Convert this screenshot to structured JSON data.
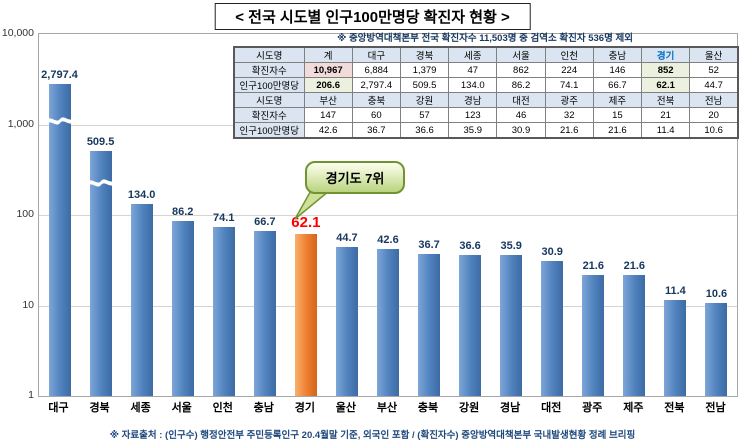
{
  "title": "< 전국 시도별 인구100만명당 확진자 현황 >",
  "chart_data": {
    "type": "bar",
    "title": "전국 시도별 인구100만명당 확진자 현황",
    "y_scale": "log",
    "ylim": [
      1,
      10000
    ],
    "y_ticks": [
      "10,000",
      "1,000",
      "100",
      "10",
      "1"
    ],
    "grid": "horizontal-major",
    "categories": [
      "대구",
      "경북",
      "세종",
      "서울",
      "인천",
      "충남",
      "경기",
      "울산",
      "부산",
      "충북",
      "강원",
      "경남",
      "대전",
      "광주",
      "제주",
      "전북",
      "전남"
    ],
    "values": [
      2797.4,
      509.5,
      134.0,
      86.2,
      74.1,
      66.7,
      62.1,
      44.7,
      42.6,
      36.7,
      36.6,
      35.9,
      30.9,
      21.6,
      21.6,
      11.4,
      10.6
    ],
    "value_labels": [
      "2,797.4",
      "509.5",
      "134.0",
      "86.2",
      "74.1",
      "66.7",
      "62.1",
      "44.7",
      "42.6",
      "36.7",
      "36.6",
      "35.9",
      "30.9",
      "21.6",
      "21.6",
      "11.4",
      "10.6"
    ],
    "highlight_index": 6,
    "highlight_category": "경기",
    "bar_color": "#4f81bd",
    "highlight_color": "#ed7d31",
    "highlight_value_color": "#ff0000",
    "value_label_color": "#17375e",
    "axis_break_indices": [
      0,
      1
    ]
  },
  "callout": {
    "label": "경기도 7위"
  },
  "table": {
    "note": "※ 중앙방역대책본부 전국 확진자수 11,503명 중 검역소 확진자 536명 제외",
    "row_headers": [
      "시도명",
      "확진자수",
      "인구100만명당"
    ],
    "total_region": "계",
    "highlight_region": "경기",
    "groups": [
      {
        "regions": [
          "계",
          "대구",
          "경북",
          "세종",
          "서울",
          "인천",
          "충남",
          "경기",
          "울산"
        ],
        "confirmed": [
          "10,967",
          "6,884",
          "1,379",
          "47",
          "862",
          "224",
          "146",
          "852",
          "52"
        ],
        "per_million": [
          "206.6",
          "2,797.4",
          "509.5",
          "134.0",
          "86.2",
          "74.1",
          "66.7",
          "62.1",
          "44.7"
        ]
      },
      {
        "regions": [
          "부산",
          "충북",
          "강원",
          "경남",
          "대전",
          "광주",
          "제주",
          "전북",
          "전남"
        ],
        "confirmed": [
          "147",
          "60",
          "57",
          "123",
          "46",
          "32",
          "15",
          "21",
          "20"
        ],
        "per_million": [
          "42.6",
          "36.7",
          "36.6",
          "35.9",
          "30.9",
          "21.6",
          "21.6",
          "11.4",
          "10.6"
        ]
      }
    ]
  },
  "footer": {
    "source": "※ 자료출처 : (인구수) 행정안전부 주민등록인구 20.4월말 기준, 외국인 포함 / (확진자수) 중앙방역대책본부 국내발생현황 정례 브리핑"
  }
}
